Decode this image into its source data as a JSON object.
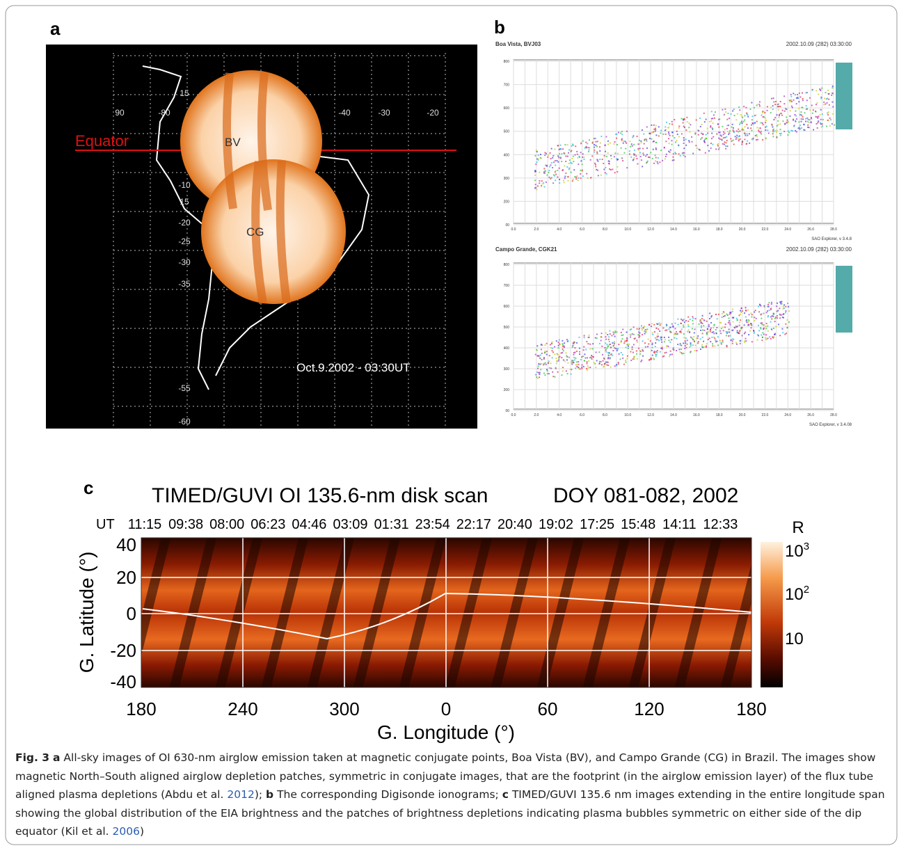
{
  "panel_a": {
    "label": "a",
    "equator": "Equator",
    "site_bv": "BV",
    "site_cg": "CG",
    "timestamp": "Oct.9.2002 - 03:30UT",
    "lon_labels": [
      "90",
      "-80",
      "-40",
      "-30",
      "-20"
    ],
    "lat_labels": [
      "15",
      "-10",
      "15",
      "-20",
      "-25",
      "-30",
      "-35",
      "-55",
      "-60"
    ]
  },
  "panel_b": {
    "label": "b",
    "top": {
      "station": "Boa Vista, BVJ03",
      "time": "2002.10.09 (282) 03:30:00",
      "software": "SAO Explorer, v 3.4.8"
    },
    "bottom": {
      "station": "Campo Grande, CGK21",
      "time": "2002.10.09 (282) 03:30:00",
      "software": "SAO Explorer, v 3.4.08"
    },
    "y_ticks": [
      "800",
      "700",
      "600",
      "500",
      "400",
      "300",
      "200",
      "00"
    ],
    "x_ticks": [
      "0.0",
      "2.0",
      "4.0",
      "6.0",
      "8.0",
      "10.0",
      "12.0",
      "14.0",
      "16.0",
      "18.0",
      "20.0",
      "22.0",
      "24.0",
      "26.0",
      "28.0"
    ]
  },
  "panel_c": {
    "label": "c",
    "title": "TIMED/GUVI  OI 135.6-nm disk scan",
    "date": "DOY 081-082, 2002",
    "ut_label": "UT",
    "ut_times": [
      "11:15",
      "09:38",
      "08:00",
      "06:23",
      "04:46",
      "03:09",
      "01:31",
      "23:54",
      "22:17",
      "20:40",
      "19:02",
      "17:25",
      "15:48",
      "14:11",
      "12:33"
    ],
    "y_label": "G. Latitude (°)",
    "x_label": "G. Longitude (°)",
    "y_ticks": [
      "40",
      "20",
      "0",
      "-20",
      "-40"
    ],
    "x_ticks": [
      "180",
      "240",
      "300",
      "0",
      "60",
      "120",
      "180"
    ],
    "colorbar_unit": "R",
    "colorbar_ticks": [
      {
        "base": "10",
        "exp": "3"
      },
      {
        "base": "10",
        "exp": "2"
      },
      {
        "base": "10"
      }
    ]
  },
  "caption": {
    "label": "Fig. 3",
    "parts": [
      {
        "panel": "a",
        "text": "All-sky images of OI 630-nm airglow emission taken at magnetic conjugate points, Boa Vista (BV), and Campo Grande (CG) in Brazil. The images show magnetic North–South aligned airglow depletion patches, symmetric in conjugate images, that are the footprint (in the airglow emission layer) of the flux tube aligned plasma depletions (Abdu et al.",
        "ref": "2012",
        "after": ");"
      },
      {
        "panel": "b",
        "text": "The corresponding Digisonde ionograms;"
      },
      {
        "panel": "c",
        "text": "TIMED/GUVI 135.6 nm images extending in the entire longitude span showing the global distribution of the EIA brightness and the patches of brightness depletions indicating plasma bubbles symmetric on either side of the dip equator (Kil et al.",
        "ref": "2006",
        "after": ")"
      }
    ]
  }
}
